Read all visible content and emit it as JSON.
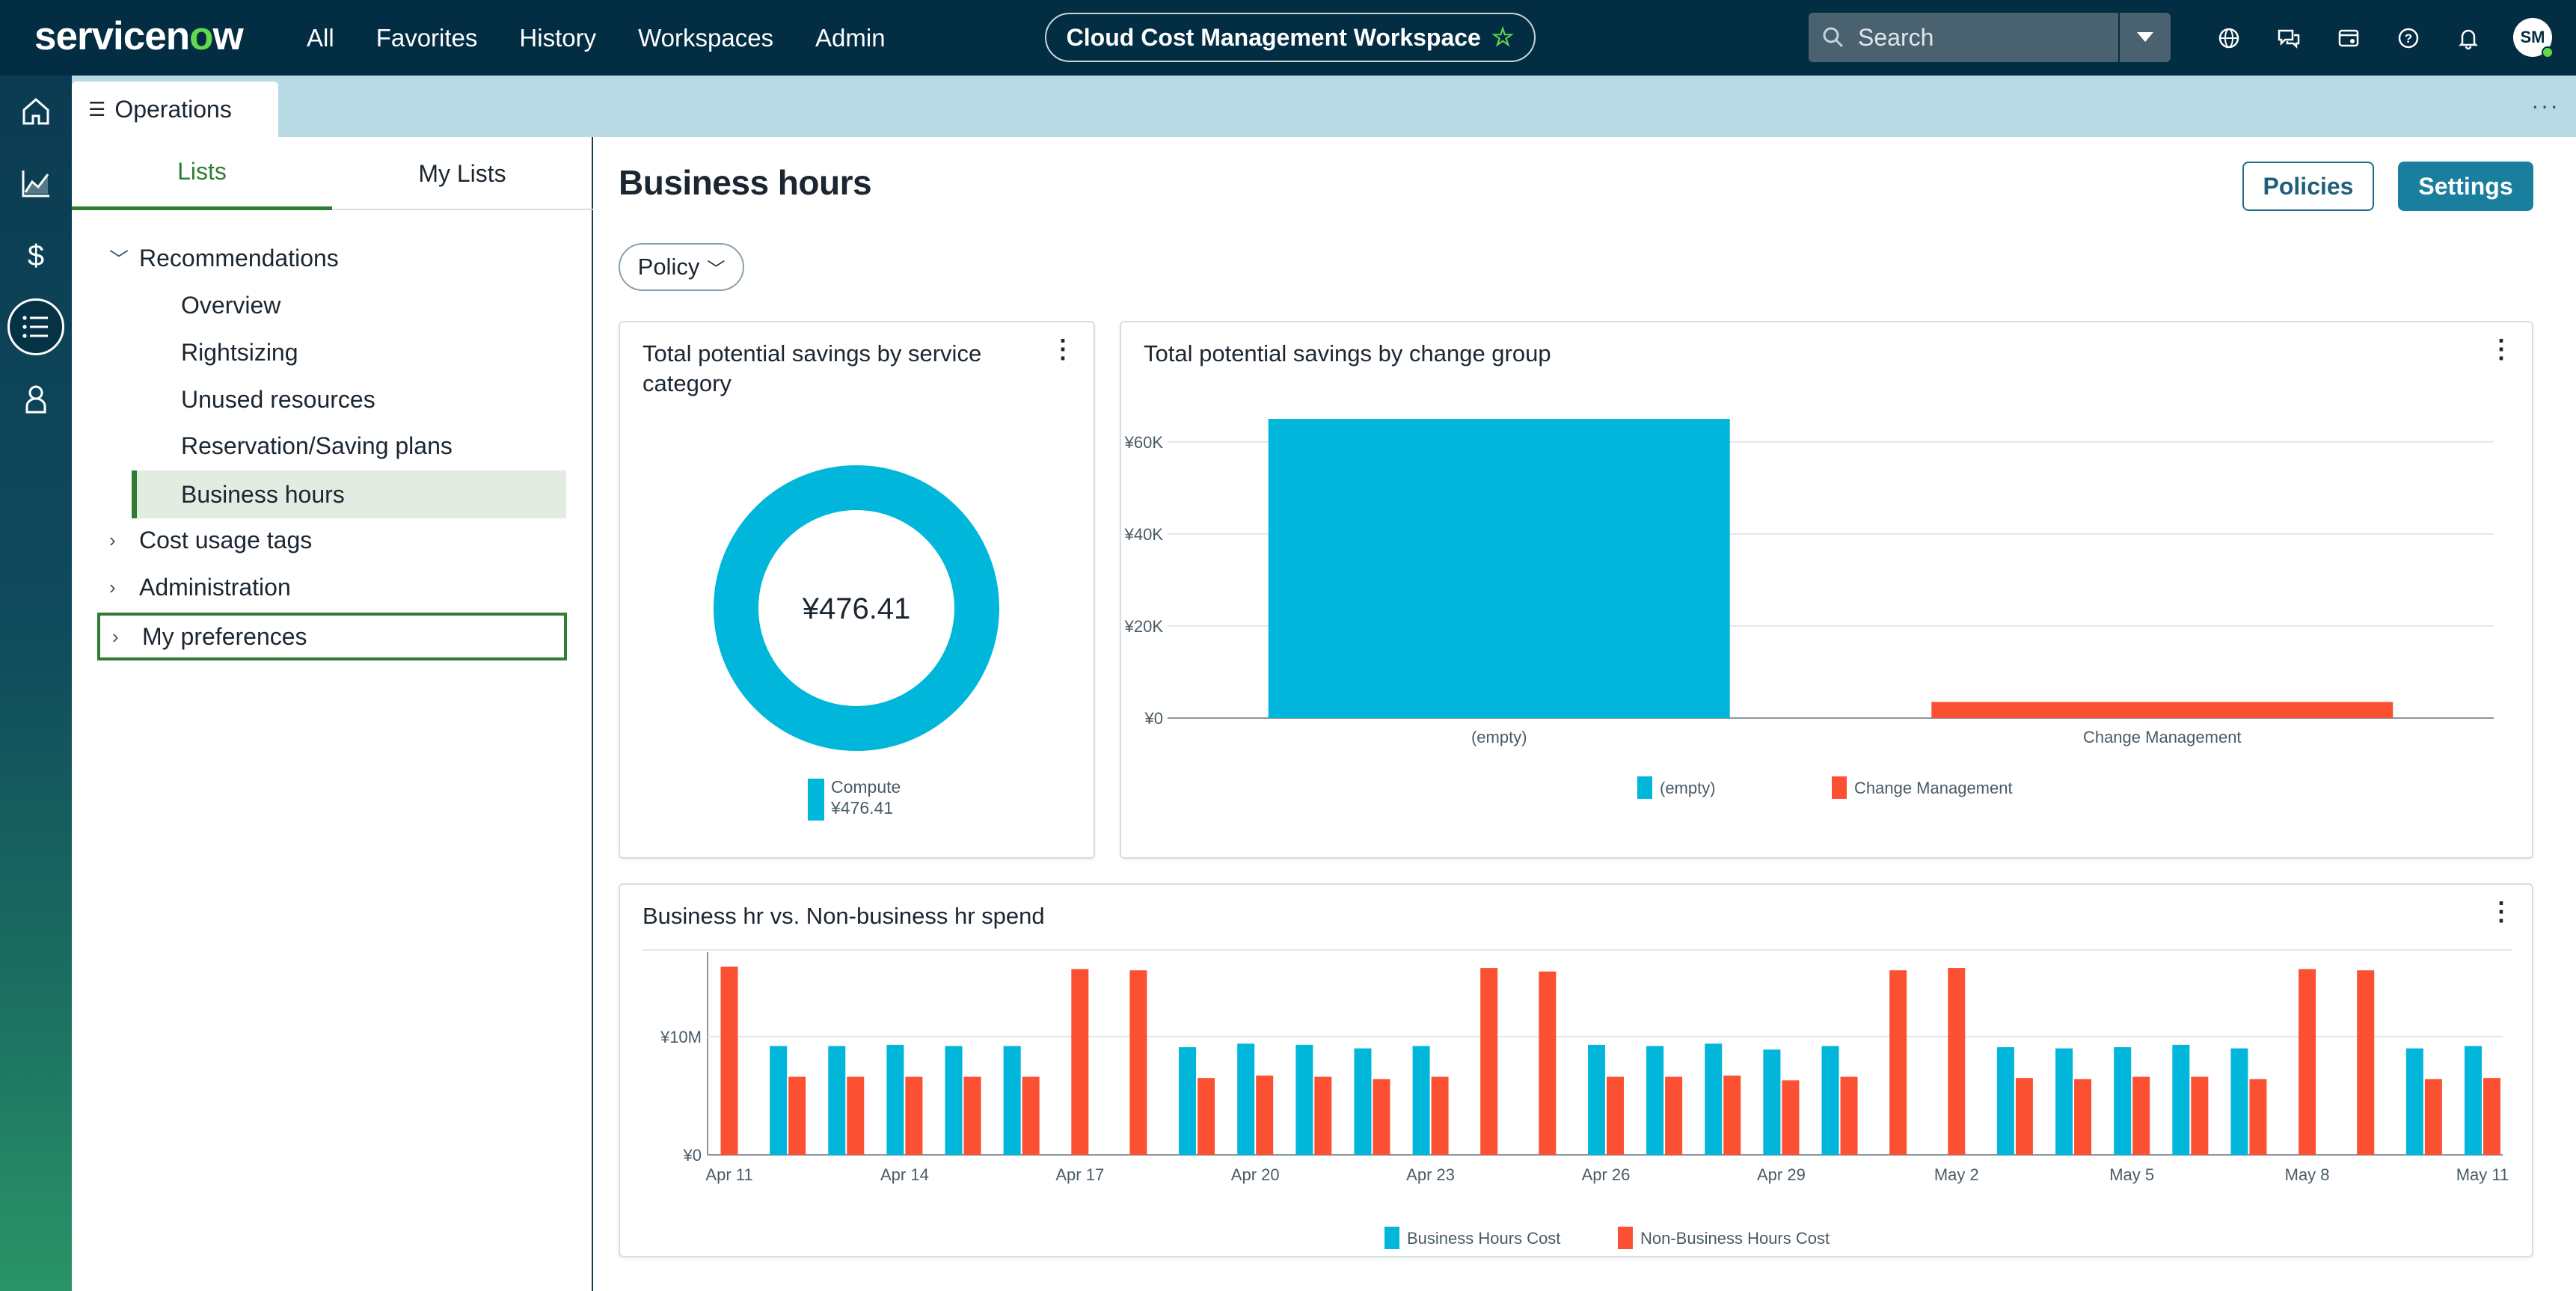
{
  "topnav": {
    "logo_prefix": "servicen",
    "logo_o": "o",
    "logo_suffix": "w",
    "links": [
      "All",
      "Favorites",
      "History",
      "Workspaces",
      "Admin"
    ],
    "workspace_title": "Cloud Cost Management Workspace",
    "search_placeholder": "Search",
    "avatar_initials": "SM",
    "icons": [
      "globe-icon",
      "chat-icon",
      "palette-icon",
      "help-icon",
      "bell-icon"
    ]
  },
  "rail": {
    "icons": [
      "home-icon",
      "chart-icon",
      "dollar-icon",
      "list-icon",
      "user-icon"
    ],
    "active_index": 3
  },
  "tabstrip": {
    "tab_label": "Operations",
    "more": "···"
  },
  "leftpanel": {
    "tabs": [
      "Lists",
      "My Lists"
    ],
    "active_tab": 0,
    "tree": {
      "recommendations": "Recommendations",
      "children": [
        "Overview",
        "Rightsizing",
        "Unused resources",
        "Reservation/Saving plans",
        "Business hours"
      ],
      "cost_usage_tags": "Cost usage tags",
      "administration": "Administration",
      "my_preferences": "My preferences"
    }
  },
  "main": {
    "title": "Business hours",
    "policies_button": "Policies",
    "settings_button": "Settings",
    "policy_filter": "Policy"
  },
  "colors": {
    "cyan": "#00b7db",
    "orange": "#fc5032",
    "green": "#2e7d32",
    "nav": "#032d42"
  },
  "chart_data": [
    {
      "type": "pie",
      "title": "Total potential savings by service category",
      "center_label": "¥476.41",
      "slices": [
        {
          "label": "Compute",
          "value": 476.41,
          "value_label": "¥476.41"
        }
      ]
    },
    {
      "type": "bar",
      "title": "Total potential savings by change group",
      "categories": [
        "(empty)",
        "Change Management"
      ],
      "values": [
        65000,
        3500
      ],
      "ylim": [
        0,
        65000
      ],
      "yticks": [
        "¥0",
        "¥20K",
        "¥40K",
        "¥60K"
      ],
      "ytick_values": [
        0,
        20000,
        40000,
        60000
      ],
      "legend": [
        "(empty)",
        "Change Management"
      ]
    },
    {
      "type": "bar",
      "title": "Business hr vs. Non-business hr spend",
      "x": [
        "Apr 11",
        "Apr 12",
        "Apr 13",
        "Apr 14",
        "Apr 15",
        "Apr 16",
        "Apr 17",
        "Apr 18",
        "Apr 19",
        "Apr 20",
        "Apr 21",
        "Apr 22",
        "Apr 23",
        "Apr 24",
        "Apr 25",
        "Apr 26",
        "Apr 27",
        "Apr 28",
        "Apr 29",
        "Apr 30",
        "May 1",
        "May 2",
        "May 3",
        "May 4",
        "May 5",
        "May 6",
        "May 7",
        "May 8",
        "May 9",
        "May 10",
        "May 11"
      ],
      "xtick_labels": [
        "Apr 11",
        "Apr 14",
        "Apr 17",
        "Apr 20",
        "Apr 23",
        "Apr 26",
        "Apr 29",
        "May 2",
        "May 5",
        "May 8",
        "May 11"
      ],
      "yticks": [
        "¥0",
        "¥10M"
      ],
      "ytick_values": [
        0,
        10000000
      ],
      "ylim": [
        0,
        16500000
      ],
      "series": [
        {
          "name": "Business Hours Cost",
          "values": [
            0,
            9200000,
            9200000,
            9300000,
            9200000,
            9200000,
            0,
            0,
            9100000,
            9400000,
            9300000,
            9000000,
            9200000,
            0,
            0,
            9300000,
            9200000,
            9400000,
            8900000,
            9200000,
            0,
            0,
            9100000,
            9000000,
            9100000,
            9300000,
            9000000,
            0,
            0,
            9000000,
            9200000
          ]
        },
        {
          "name": "Non-Business Hours Cost",
          "values": [
            15900000,
            6600000,
            6600000,
            6600000,
            6600000,
            6600000,
            15700000,
            15600000,
            6500000,
            6700000,
            6600000,
            6400000,
            6600000,
            15800000,
            15500000,
            6600000,
            6600000,
            6700000,
            6300000,
            6600000,
            15600000,
            15800000,
            6500000,
            6400000,
            6600000,
            6600000,
            6400000,
            15700000,
            15600000,
            6400000,
            6500000
          ]
        }
      ],
      "legend": [
        "Business Hours Cost",
        "Non-Business Hours Cost"
      ]
    }
  ]
}
